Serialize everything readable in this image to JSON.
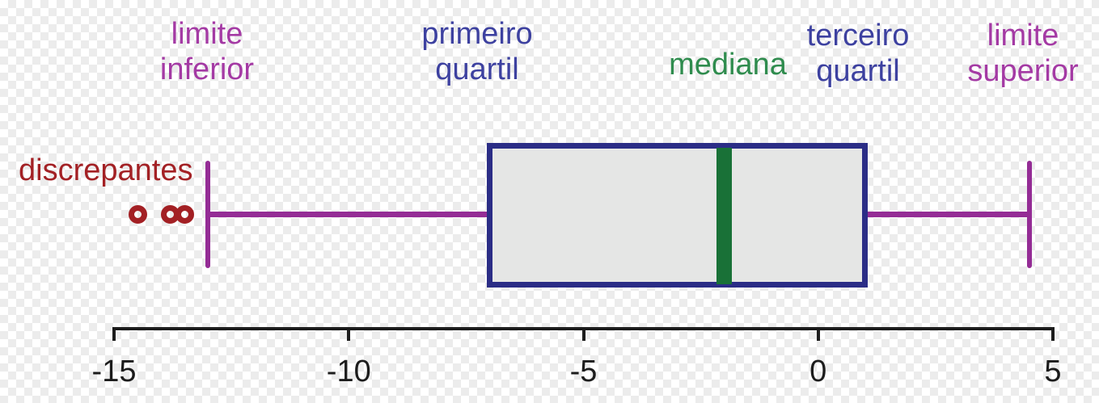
{
  "chart_data": {
    "type": "boxplot",
    "orientation": "horizontal",
    "title": "",
    "axis": {
      "min": -15,
      "max": 5,
      "ticks": [
        -15,
        -10,
        -5,
        0,
        5
      ],
      "tick_labels": [
        "-15",
        "-10",
        "-5",
        "0",
        "5"
      ]
    },
    "box": {
      "limite_inferior": -13,
      "primeiro_quartil": -7,
      "mediana": -2,
      "terceiro_quartil": 1,
      "limite_superior": 4.5,
      "discrepantes": [
        -14.5,
        -13.8,
        -13.5
      ]
    },
    "colors": {
      "whisker": "#942c95",
      "box_border": "#2b2d86",
      "box_fill": "#e5e6e5",
      "median_line": "#197137",
      "outlier": "#a32024",
      "axis": "#1c1c1c",
      "label_limit": "#a43aa4",
      "label_quartile": "#3d41a0",
      "label_median": "#2f8c4e",
      "label_outlier": "#a32125"
    },
    "labels": [
      {
        "id": "limite-inferior",
        "lines": [
          "limite",
          "inferior"
        ],
        "color_key": "label_limit"
      },
      {
        "id": "primeiro-quartil",
        "lines": [
          "primeiro",
          "quartil"
        ],
        "color_key": "label_quartile"
      },
      {
        "id": "mediana",
        "lines": [
          "mediana"
        ],
        "color_key": "label_median"
      },
      {
        "id": "terceiro-quartil",
        "lines": [
          "terceiro",
          "quartil"
        ],
        "color_key": "label_quartile"
      },
      {
        "id": "limite-superior",
        "lines": [
          "limite",
          "superior"
        ],
        "color_key": "label_limit"
      },
      {
        "id": "discrepantes",
        "lines": [
          "discrepantes"
        ],
        "color_key": "label_outlier"
      }
    ]
  }
}
